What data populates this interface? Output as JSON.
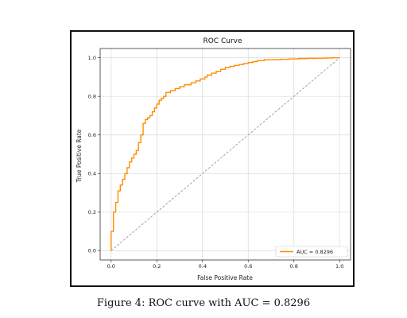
{
  "chart_data": {
    "type": "line",
    "title": "ROC Curve",
    "xlabel": "False Positive Rate",
    "ylabel": "True Positive Rate",
    "xlim": [
      0,
      1
    ],
    "ylim": [
      0,
      1
    ],
    "x_ticks": [
      "0.0",
      "0.2",
      "0.4",
      "0.6",
      "0.8",
      "1.0"
    ],
    "y_ticks": [
      "0.0",
      "0.2",
      "0.4",
      "0.6",
      "0.8",
      "1.0"
    ],
    "grid": true,
    "legend_position": "bottom-right",
    "series": [
      {
        "name": "AUC = 0.8296",
        "color": "#ff8c00",
        "x": [
          0.0,
          0.0,
          0.01,
          0.01,
          0.02,
          0.02,
          0.03,
          0.03,
          0.04,
          0.04,
          0.05,
          0.05,
          0.06,
          0.06,
          0.07,
          0.07,
          0.08,
          0.08,
          0.09,
          0.09,
          0.1,
          0.1,
          0.11,
          0.11,
          0.12,
          0.12,
          0.13,
          0.13,
          0.14,
          0.14,
          0.15,
          0.15,
          0.16,
          0.16,
          0.17,
          0.17,
          0.18,
          0.18,
          0.19,
          0.19,
          0.2,
          0.2,
          0.21,
          0.21,
          0.22,
          0.22,
          0.23,
          0.23,
          0.24,
          0.24,
          0.26,
          0.26,
          0.28,
          0.28,
          0.3,
          0.3,
          0.32,
          0.32,
          0.35,
          0.35,
          0.37,
          0.37,
          0.39,
          0.39,
          0.41,
          0.41,
          0.42,
          0.42,
          0.44,
          0.44,
          0.46,
          0.46,
          0.48,
          0.48,
          0.5,
          0.5,
          0.52,
          0.52,
          0.54,
          0.54,
          0.56,
          0.56,
          0.58,
          0.58,
          0.6,
          0.6,
          0.62,
          0.62,
          0.64,
          0.64,
          0.67,
          0.67,
          0.7,
          0.7,
          0.74,
          0.74,
          0.78,
          0.78,
          0.82,
          0.82,
          0.86,
          0.86,
          0.9,
          0.9,
          0.94,
          0.94,
          0.97,
          0.97,
          1.0
        ],
        "y": [
          0.0,
          0.1,
          0.1,
          0.2,
          0.2,
          0.25,
          0.25,
          0.31,
          0.31,
          0.34,
          0.34,
          0.37,
          0.37,
          0.4,
          0.4,
          0.43,
          0.43,
          0.46,
          0.46,
          0.48,
          0.48,
          0.5,
          0.5,
          0.52,
          0.52,
          0.56,
          0.56,
          0.6,
          0.6,
          0.66,
          0.66,
          0.68,
          0.68,
          0.69,
          0.69,
          0.7,
          0.7,
          0.72,
          0.72,
          0.74,
          0.74,
          0.76,
          0.76,
          0.78,
          0.78,
          0.79,
          0.79,
          0.8,
          0.8,
          0.82,
          0.82,
          0.83,
          0.83,
          0.84,
          0.84,
          0.85,
          0.85,
          0.86,
          0.86,
          0.87,
          0.87,
          0.88,
          0.88,
          0.89,
          0.89,
          0.9,
          0.9,
          0.91,
          0.91,
          0.92,
          0.92,
          0.93,
          0.93,
          0.94,
          0.94,
          0.95,
          0.95,
          0.955,
          0.955,
          0.96,
          0.96,
          0.965,
          0.965,
          0.97,
          0.97,
          0.975,
          0.975,
          0.98,
          0.98,
          0.985,
          0.985,
          0.99,
          0.99,
          0.99,
          0.99,
          0.992,
          0.992,
          0.994,
          0.994,
          0.996,
          0.996,
          0.997,
          0.997,
          0.998,
          0.998,
          0.999,
          0.999,
          1.0,
          1.0
        ]
      },
      {
        "name": "",
        "color": "#999999",
        "style": "dashed",
        "x": [
          0,
          1
        ],
        "y": [
          0,
          1
        ]
      }
    ]
  },
  "caption": "Figure 4: ROC curve with AUC = 0.8296"
}
